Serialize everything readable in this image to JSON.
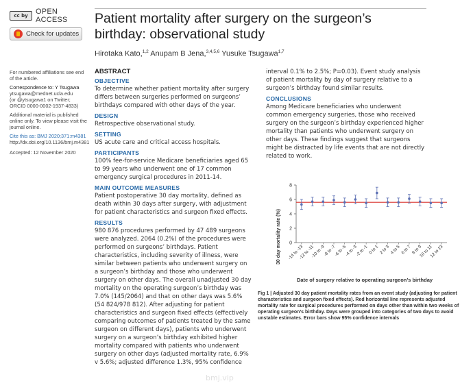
{
  "badges": {
    "open_access": "OPEN ACCESS",
    "cc_label": "cc by",
    "check_updates": "Check for updates"
  },
  "side": {
    "affiliations_note": "For numbered affiliations see end of the article.",
    "correspondence_label": "Correspondence to: Y Tsugawa",
    "correspondence_email": "ytsugawa@mednet.ucla.edu",
    "correspondence_twitter": "(or @ytsugawa1 on Twitter;",
    "correspondence_orcid": "ORCID 0000-0002-1937-4833)",
    "additional_material": "Additional material is published online only. To view please visit the journal online.",
    "cite_as": "Cite this as: BMJ 2020;371:m4381",
    "doi": "http://dx.doi.org/10.1136/bmj.m4381",
    "accepted": "Accepted: 12 November 2020"
  },
  "article": {
    "title": "Patient mortality after surgery on the surgeon’s birthday: observational study",
    "authors": [
      {
        "name": "Hirotaka Kato,",
        "sup": "1,2"
      },
      {
        "name": " Anupam B Jena,",
        "sup": "3,4,5,6"
      },
      {
        "name": " Yusuke Tsugawa",
        "sup": "1,7"
      }
    ]
  },
  "abstract": {
    "heading": "ABSTRACT",
    "objective_h": "OBJECTIVE",
    "objective": "To determine whether patient mortality after surgery differs between surgeries performed on surgeons’ birthdays compared with other days of the year.",
    "design_h": "DESIGN",
    "design": "Retrospective observational study.",
    "setting_h": "SETTING",
    "setting": "US acute care and critical access hospitals.",
    "participants_h": "PARTICIPANTS",
    "participants": "100% fee-for-service Medicare beneficiaries aged 65 to 99 years who underwent one of 17 common emergency surgical procedures in 2011-14.",
    "outcome_h": "MAIN OUTCOME MEASURES",
    "outcome": "Patient postoperative 30 day mortality, defined as death within 30 days after surgery, with adjustment for patient characteristics and surgeon fixed effects.",
    "results_h": "RESULTS",
    "results": "980 876 procedures performed by 47 489 surgeons were analyzed. 2064 (0.2%) of the procedures were performed on surgeons’ birthdays. Patient characteristics, including severity of illness, were similar between patients who underwent surgery on a surgeon’s birthday and those who underwent surgery on other days. The overall unadjusted 30 day mortality on the operating surgeon’s birthday was 7.0% (145/2064) and that on other days was 5.6% (54 824/978 812). After adjusting for patient characteristics and surgeon fixed effects (effectively comparing outcomes of patients treated by the same surgeon on different days), patients who underwent surgery on a surgeon’s birthday exhibited higher mortality compared with patients who underwent surgery on other days (adjusted mortality rate, 6.9% v 5.6%; adjusted difference 1.3%, 95% confidence",
    "results_cont": "interval 0.1% to 2.5%; P=0.03). Event study analysis of patient mortality by day of surgery relative to a surgeon’s birthday found similar results.",
    "conclusions_h": "CONCLUSIONS",
    "conclusions": "Among Medicare beneficiaries who underwent common emergency surgeries, those who received surgery on the surgeon’s birthday experienced higher mortality than patients who underwent surgery on other days. These findings suggest that surgeons might be distracted by life events that are not directly related to work."
  },
  "figure": {
    "caption": "Fig 1 | Adjusted 30 day patient mortality rates from an event study (adjusting for patient characteristics and surgeon fixed effects). Red horizontal line represents adjusted mortality rate for surgical procedures performed on days other than within two weeks of operating surgeon’s birthday. Days were grouped into categories of two days to avoid unstable estimates. Error bars show 95% confidence intervals"
  },
  "chart_data": {
    "type": "scatter",
    "xlabel": "Date of surgery relative to operating surgeon’s birthday",
    "ylabel": "30 day mortality rate (%)",
    "ylim": [
      0,
      8
    ],
    "yticks": [
      0,
      2,
      4,
      6,
      8
    ],
    "categories": [
      "-14 to -13",
      "-12 to -11",
      "-10 to -9",
      "-8 to -7",
      "-6 to -5",
      "-4 to -3",
      "-2 to -1",
      "0 to 1",
      "2 to 3",
      "4 to 5",
      "6 to 7",
      "8 to 9",
      "10 to 11",
      "12 to 13"
    ],
    "values": [
      5.3,
      5.7,
      5.7,
      5.9,
      5.6,
      6.0,
      5.5,
      6.9,
      5.6,
      5.6,
      6.1,
      5.7,
      5.5,
      5.5
    ],
    "ci_lower": [
      4.6,
      5.1,
      5.1,
      5.3,
      5.0,
      5.4,
      4.9,
      6.1,
      5.0,
      5.0,
      5.5,
      5.1,
      4.9,
      4.9
    ],
    "ci_upper": [
      6.0,
      6.3,
      6.3,
      6.5,
      6.2,
      6.6,
      6.1,
      7.7,
      6.2,
      6.2,
      6.7,
      6.3,
      6.1,
      6.1
    ],
    "reference_line": 5.6,
    "reference_color": "#d9302b",
    "point_color": "#5b6fb3",
    "grid": false
  },
  "watermark": "bmj.vip"
}
